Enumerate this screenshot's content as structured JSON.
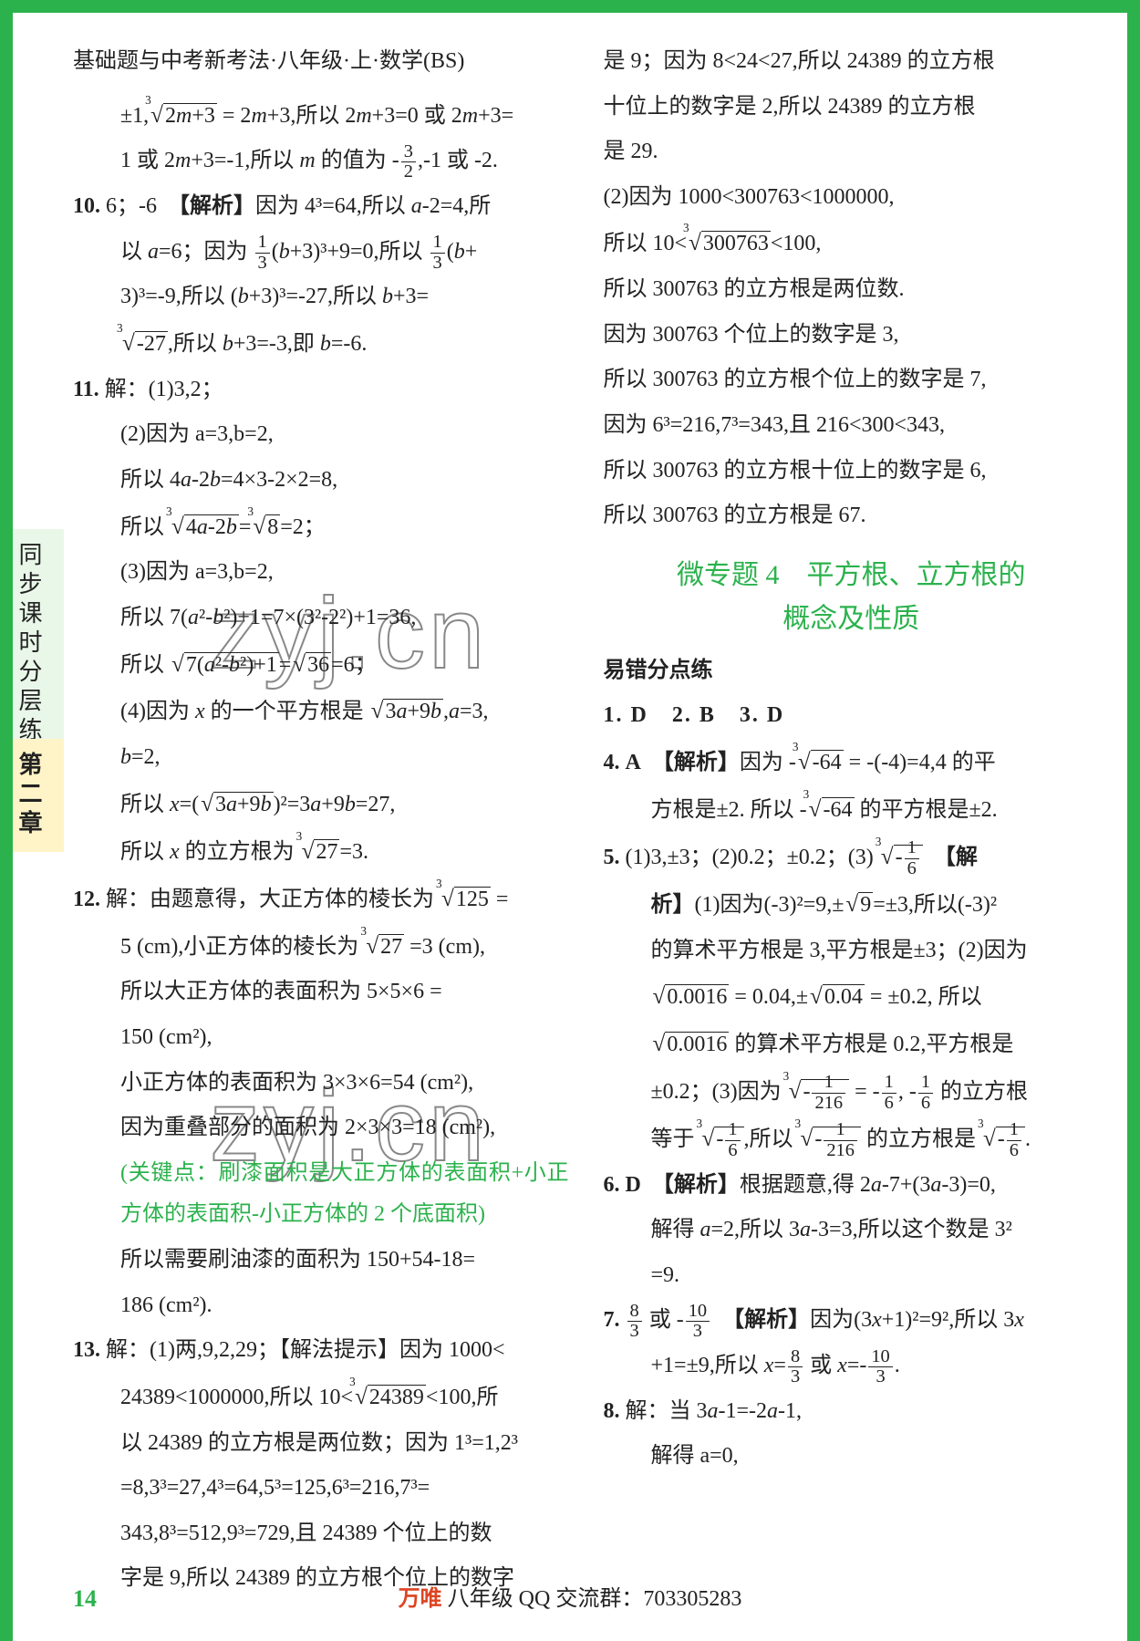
{
  "page": {
    "header": "基础题与中考新考法·八年级·上·数学(BS)",
    "pageNumber": "14",
    "footer": {
      "brand": "万唯",
      "text": " 八年级 QQ 交流群：703305283"
    },
    "sidebar": {
      "tab1": "同步课时分层练",
      "tab2": "第二章"
    },
    "watermark": "zyj.cn"
  },
  "left": {
    "q9cont1": "±1,∛(2m+3) = 2m+3,所以 2m+3=0 或 2m+3=",
    "q9cont2": "1 或 2m+3=-1,所以 m 的值为 -3/2，-1 或 -2.",
    "q10": {
      "num": "10.",
      "ans": "6；-6",
      "tag": "【解析】",
      "l1": "因为 4³=64,所以 a-2=4,所",
      "l2": "以 a=6；因为 1/3(b+3)³+9=0,所以 1/3(b+",
      "l3": "3)³=-9,所以 (b+3)³=-27,所以 b+3=",
      "l4": "∛(-27),所以 b+3=-3,即 b=-6."
    },
    "q11": {
      "num": "11.",
      "head": "解：(1)3,2；",
      "l2": "(2)因为 a=3,b=2,",
      "l3": "所以 4a-2b=4×3-2×2=8,",
      "l4": "所以 ∛(4a-2b)=∛8=2；",
      "l5": "(3)因为 a=3,b=2,",
      "l6": "所以 7(a²-b²)+1=7×(3²-2²)+1=36,",
      "l7": "所以 √(7(a²-b²)+1)=√36=6；",
      "l8": "(4)因为 x 的一个平方根是 √(3a+9b),a=3,",
      "l9": "b=2,",
      "l10": "所以 x=(√(3a+9b))²=3a+9b=27,",
      "l11": "所以 x 的立方根为 ∛27=3."
    },
    "q12": {
      "num": "12.",
      "l1": "解：由题意得，大正方体的棱长为 ∛125 =",
      "l2": "5 (cm),小正方体的棱长为 ∛27 =3 (cm),",
      "l3": "所以大正方体的表面积为 5×5×6 =",
      "l4": "150 (cm²),",
      "l5": "小正方体的表面积为 3×3×6=54 (cm²),",
      "l6": "因为重叠部分的面积为 2×3×3=18 (cm²),",
      "l7green": "(关键点：刷漆面积是大正方体的表面积+小正方体的表面积-小正方体的 2 个底面积)",
      "l8": "所以需要刷油漆的面积为 150+54-18=",
      "l9": "186 (cm²)."
    },
    "q13": {
      "num": "13.",
      "l1": "解：(1)两,9,2,29；【解法提示】因为 1000<",
      "l2": "24389<1000000,所以 10<∛24389<100,所",
      "l3": "以 24389 的立方根是两位数；因为 1³=1,2³",
      "l4": "=8,3³=27,4³=64,5³=125,6³=216,7³=",
      "l5": "343,8³=512,9³=729,且 24389 个位上的数",
      "l6": "字是 9,所以 24389 的立方根个位上的数字"
    }
  },
  "right": {
    "cont13": {
      "l1": "是 9；因为 8<24<27,所以 24389 的立方根",
      "l2": "十位上的数字是 2,所以 24389 的立方根",
      "l3": "是 29.",
      "l4": "(2)因为 1000<300763<1000000,",
      "l5": "所以 10<∛300763<100,",
      "l6": "所以 300763 的立方根是两位数.",
      "l7": "因为 300763 个位上的数字是 3,",
      "l8": "所以 300763 的立方根个位上的数字是 7,",
      "l9": "因为 6³=216,7³=343,且 216<300<343,",
      "l10": "所以 300763 的立方根十位上的数字是 6,",
      "l11": "所以 300763 的立方根是 67."
    },
    "sectionTitle1": "微专题 4　平方根、立方根的",
    "sectionTitle2": "概念及性质",
    "subhead": "易错分点练",
    "ans123": "1. D　2. B　3. D",
    "q4": {
      "num": "4.",
      "ans": "A",
      "tag": "【解析】",
      "l1": "因为 -∛(-64) = -(-4)=4,4 的平",
      "l2": "方根是±2. 所以 -∛(-64) 的平方根是±2."
    },
    "q5": {
      "num": "5.",
      "l1": "(1)3,±3；(2)0.2；±0.2；(3) ∛(-1/6)　【解",
      "l2": "析】(1)因为(-3)²=9,±√9=±3,所以(-3)²",
      "l3": "的算术平方根是 3,平方根是±3；(2)因为",
      "l4": "√0.0016 = 0.04,±√0.04 = ±0.2, 所以",
      "l5": "√0.0016 的算术平方根是 0.2,平方根是",
      "l6": "±0.2；(3)因为 ∛(-1/216) = -1/6, -1/6 的立方根",
      "l7": "等于 ∛(-1/6),所以 ∛(-1/216) 的立方根是 ∛(-1/6)."
    },
    "q6": {
      "num": "6.",
      "ans": "D",
      "tag": "【解析】",
      "l1": "根据题意,得 2a-7+(3a-3)=0,",
      "l2": "解得 a=2,所以 3a-3=3,所以这个数是 3²",
      "l3": "=9."
    },
    "q7": {
      "num": "7.",
      "ans": "8/3 或 -10/3",
      "tag": "【解析】",
      "l1": "因为(3x+1)²=9²,所以 3x",
      "l2": "+1=±9,所以 x=8/3 或 x=-10/3."
    },
    "q8": {
      "num": "8.",
      "l1": "解：当 3a-1=-2a-1,",
      "l2": "解得 a=0,"
    }
  },
  "colors": {
    "border": "#2bb24c",
    "green_text": "#2bb24c",
    "sidebar1_bg": "#e9f7e9",
    "sidebar2_bg": "#fff4c7",
    "brand": "#d42",
    "text": "#222222"
  }
}
